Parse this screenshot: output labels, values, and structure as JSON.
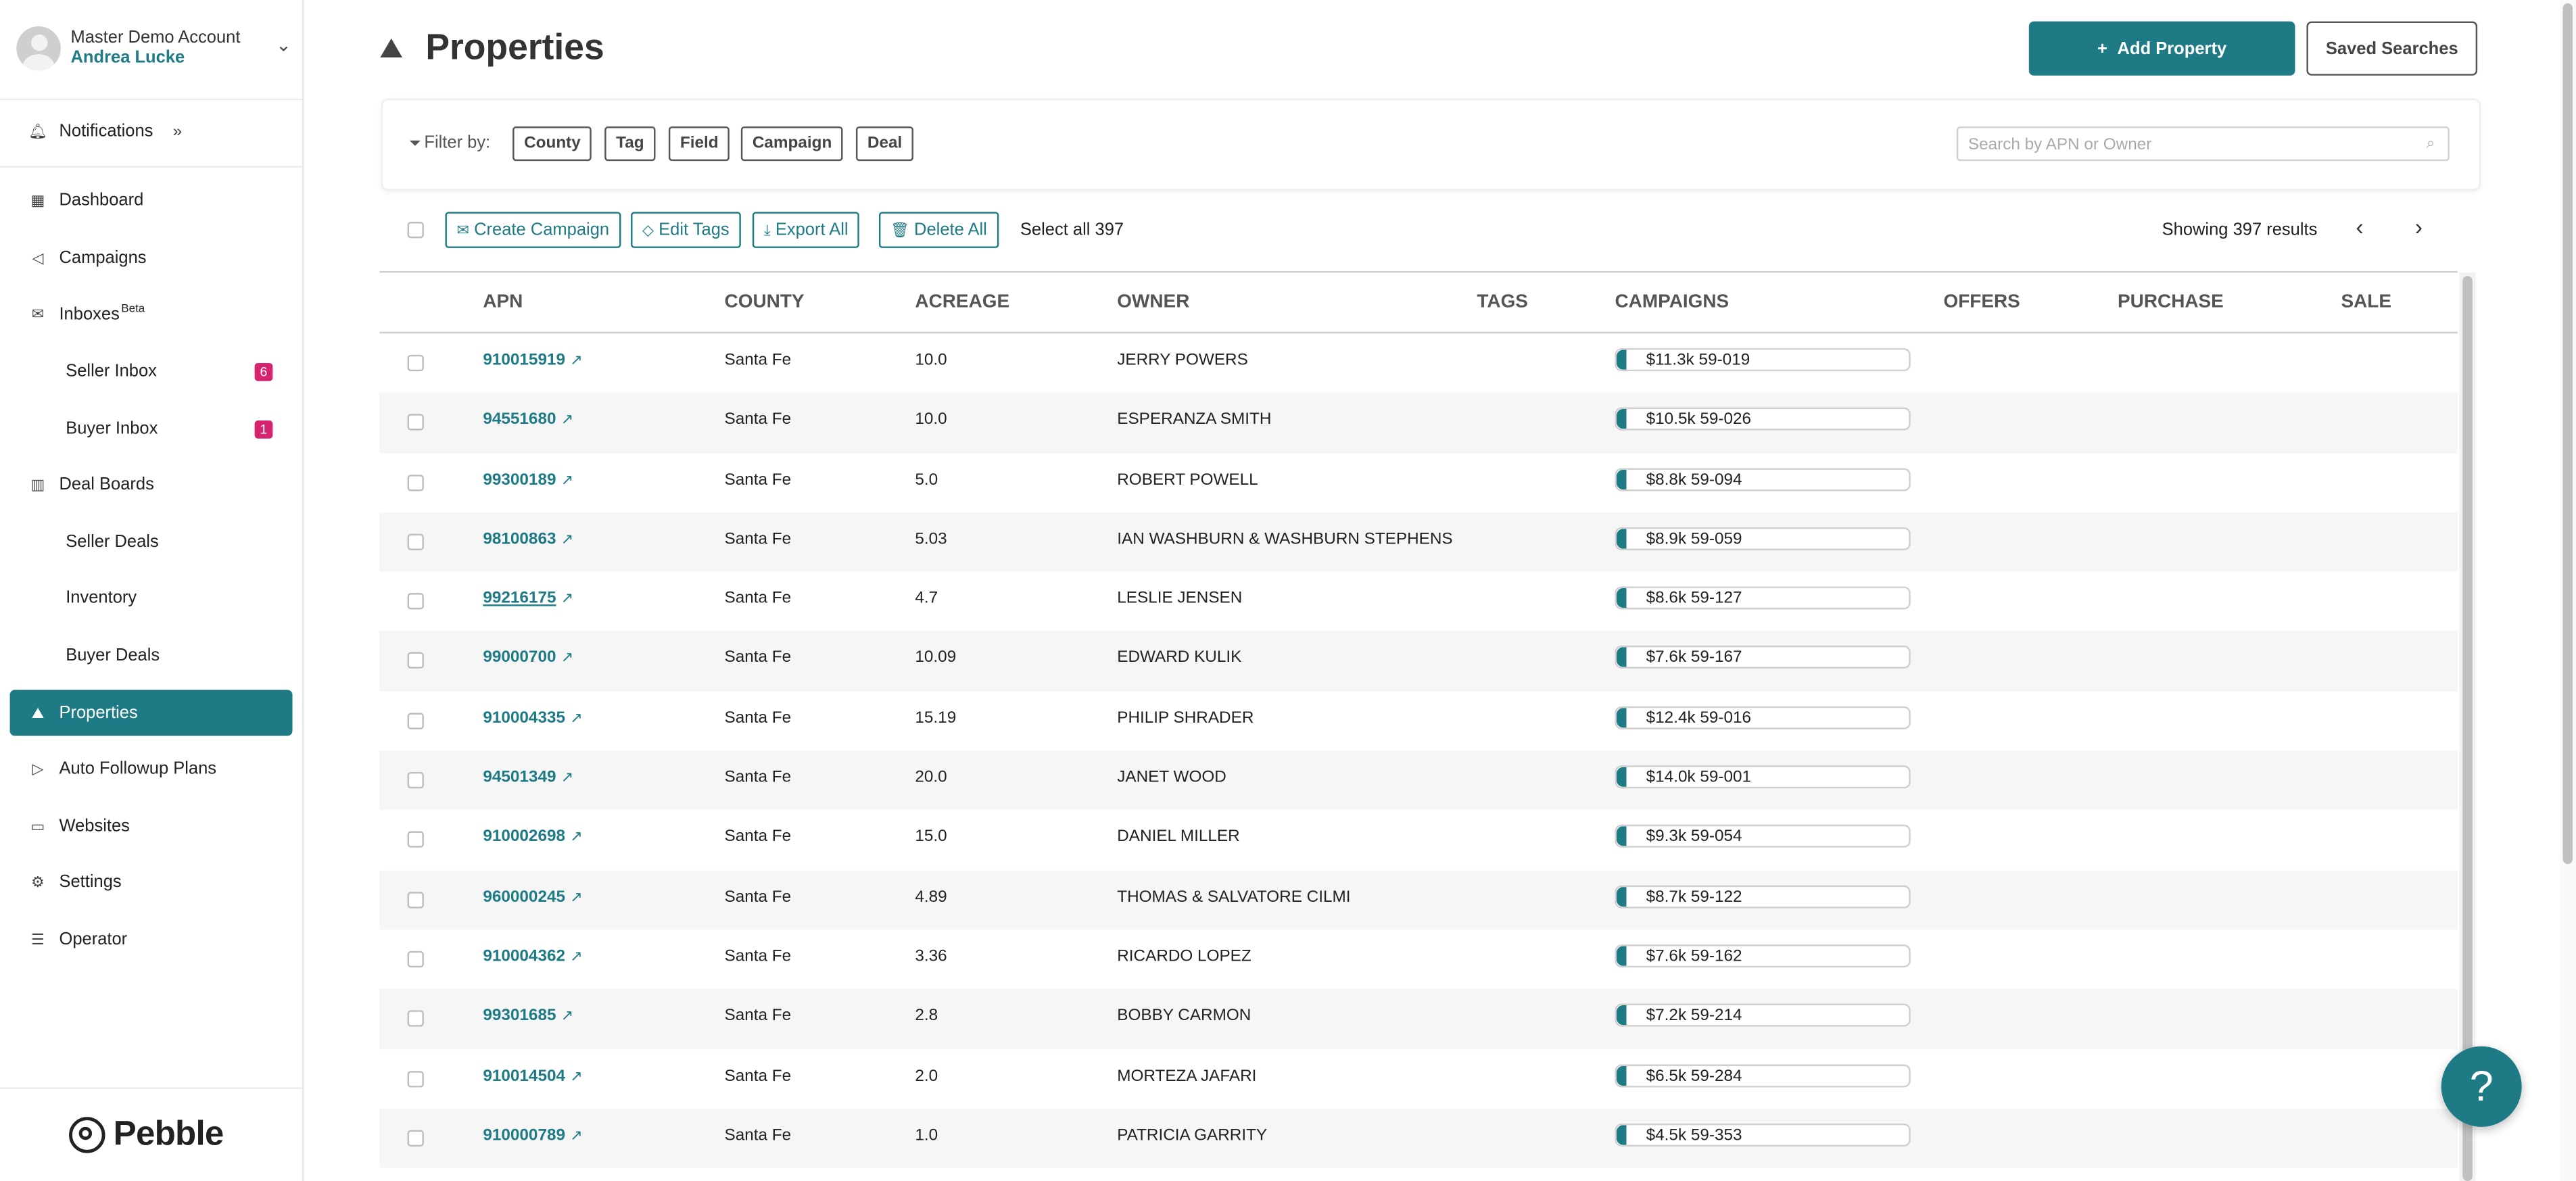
{
  "account": {
    "name": "Master Demo Account",
    "user": "Andrea Lucke"
  },
  "sidebar": {
    "notifications": "Notifications",
    "items": {
      "dashboard": "Dashboard",
      "campaigns": "Campaigns",
      "inboxes": "Inboxes",
      "inboxes_badge": "Beta",
      "seller_inbox": "Seller Inbox",
      "seller_inbox_count": "6",
      "buyer_inbox": "Buyer Inbox",
      "buyer_inbox_count": "1",
      "deal_boards": "Deal Boards",
      "seller_deals": "Seller Deals",
      "inventory": "Inventory",
      "buyer_deals": "Buyer Deals",
      "properties": "Properties",
      "auto_followup": "Auto Followup Plans",
      "websites": "Websites",
      "settings": "Settings",
      "operator": "Operator"
    },
    "brand": "Pebble"
  },
  "header": {
    "title": "Properties",
    "add_property": "Add Property",
    "saved_searches": "Saved Searches"
  },
  "filters": {
    "label": "Filter by:",
    "chips": [
      "County",
      "Tag",
      "Field",
      "Campaign",
      "Deal"
    ],
    "search_placeholder": "Search by APN or Owner"
  },
  "toolbar": {
    "create_campaign": "Create Campaign",
    "edit_tags": "Edit Tags",
    "export_all": "Export All",
    "delete_all": "Delete All",
    "select_all": "Select all 397",
    "showing": "Showing 397 results"
  },
  "table": {
    "columns": [
      "APN",
      "COUNTY",
      "ACREAGE",
      "OWNER",
      "TAGS",
      "CAMPAIGNS",
      "OFFERS",
      "PURCHASE",
      "SALE"
    ],
    "rows": [
      {
        "apn": "910015919",
        "county": "Santa Fe",
        "acreage": "10.0",
        "owner": "JERRY POWERS",
        "campaign": "$11.3k 59-019"
      },
      {
        "apn": "94551680",
        "county": "Santa Fe",
        "acreage": "10.0",
        "owner": "ESPERANZA SMITH",
        "campaign": "$10.5k 59-026"
      },
      {
        "apn": "99300189",
        "county": "Santa Fe",
        "acreage": "5.0",
        "owner": "ROBERT POWELL",
        "campaign": "$8.8k 59-094"
      },
      {
        "apn": "98100863",
        "county": "Santa Fe",
        "acreage": "5.03",
        "owner": "IAN WASHBURN & WASHBURN STEPHENS",
        "campaign": "$8.9k 59-059"
      },
      {
        "apn": "99216175",
        "county": "Santa Fe",
        "acreage": "4.7",
        "owner": "LESLIE JENSEN",
        "campaign": "$8.6k 59-127"
      },
      {
        "apn": "99000700",
        "county": "Santa Fe",
        "acreage": "10.09",
        "owner": "EDWARD KULIK",
        "campaign": "$7.6k 59-167"
      },
      {
        "apn": "910004335",
        "county": "Santa Fe",
        "acreage": "15.19",
        "owner": "PHILIP SHRADER",
        "campaign": "$12.4k 59-016"
      },
      {
        "apn": "94501349",
        "county": "Santa Fe",
        "acreage": "20.0",
        "owner": "JANET WOOD",
        "campaign": "$14.0k 59-001"
      },
      {
        "apn": "910002698",
        "county": "Santa Fe",
        "acreage": "15.0",
        "owner": "DANIEL MILLER",
        "campaign": "$9.3k 59-054"
      },
      {
        "apn": "960000245",
        "county": "Santa Fe",
        "acreage": "4.89",
        "owner": "THOMAS & SALVATORE CILMI",
        "campaign": "$8.7k 59-122"
      },
      {
        "apn": "910004362",
        "county": "Santa Fe",
        "acreage": "3.36",
        "owner": "RICARDO LOPEZ",
        "campaign": "$7.6k 59-162"
      },
      {
        "apn": "99301685",
        "county": "Santa Fe",
        "acreage": "2.8",
        "owner": "BOBBY CARMON",
        "campaign": "$7.2k 59-214"
      },
      {
        "apn": "910014504",
        "county": "Santa Fe",
        "acreage": "2.0",
        "owner": "MORTEZA JAFARI",
        "campaign": "$6.5k 59-284"
      },
      {
        "apn": "910000789",
        "county": "Santa Fe",
        "acreage": "1.0",
        "owner": "PATRICIA GARRITY",
        "campaign": "$4.5k 59-353"
      }
    ]
  },
  "help": "?"
}
